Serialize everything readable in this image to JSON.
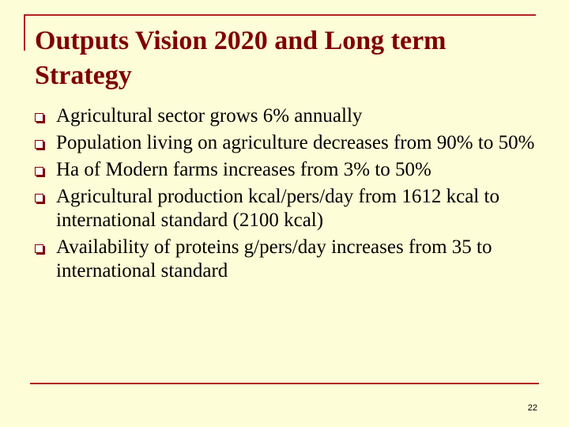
{
  "slide": {
    "title": "Outputs Vision 2020 and Long term Strategy",
    "bullets": [
      "Agricultural sector grows 6% annually",
      "Population living on agriculture decreases from 90% to 50%",
      "Ha of Modern farms increases from 3% to 50%",
      "Agricultural production kcal/pers/day from 1612 kcal to international standard (2100 kcal)",
      "Availability of proteins g/pers/day increases from 35 to international standard"
    ],
    "page_number": "22"
  },
  "colors": {
    "background": "#fdfdd7",
    "accent": "#b22222",
    "title": "#800000"
  }
}
